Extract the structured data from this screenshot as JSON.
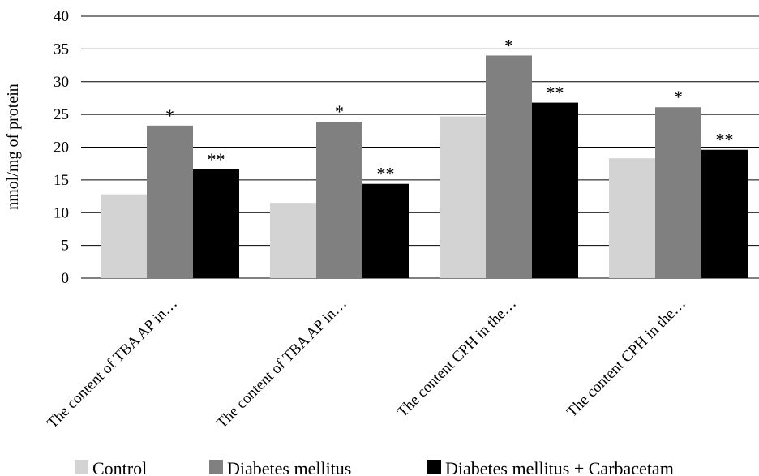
{
  "chart_data": {
    "type": "bar",
    "ylabel": "nmol/mg of protein",
    "ylim": [
      0,
      40
    ],
    "yticks": [
      0,
      5,
      10,
      15,
      20,
      25,
      30,
      35,
      40
    ],
    "grid": true,
    "legend_position": "bottom",
    "categories": [
      "The content of  TBA AP in…",
      "The content of  TBA AP in…",
      "The content CPH in the…",
      "The content CPH in the…"
    ],
    "series": [
      {
        "name": "Control",
        "color": "#d3d3d3",
        "values": [
          12.8,
          11.5,
          24.7,
          18.3
        ]
      },
      {
        "name": "Diabetes mellitus",
        "color": "#808080",
        "values": [
          23.3,
          23.9,
          34.0,
          26.1
        ]
      },
      {
        "name": "Diabetes mellitus + Carbacetam",
        "color": "#000000",
        "values": [
          16.6,
          14.4,
          26.8,
          19.6
        ]
      }
    ],
    "annotations": [
      {
        "series": 1,
        "label": "*"
      },
      {
        "series": 2,
        "label": "**"
      }
    ]
  }
}
